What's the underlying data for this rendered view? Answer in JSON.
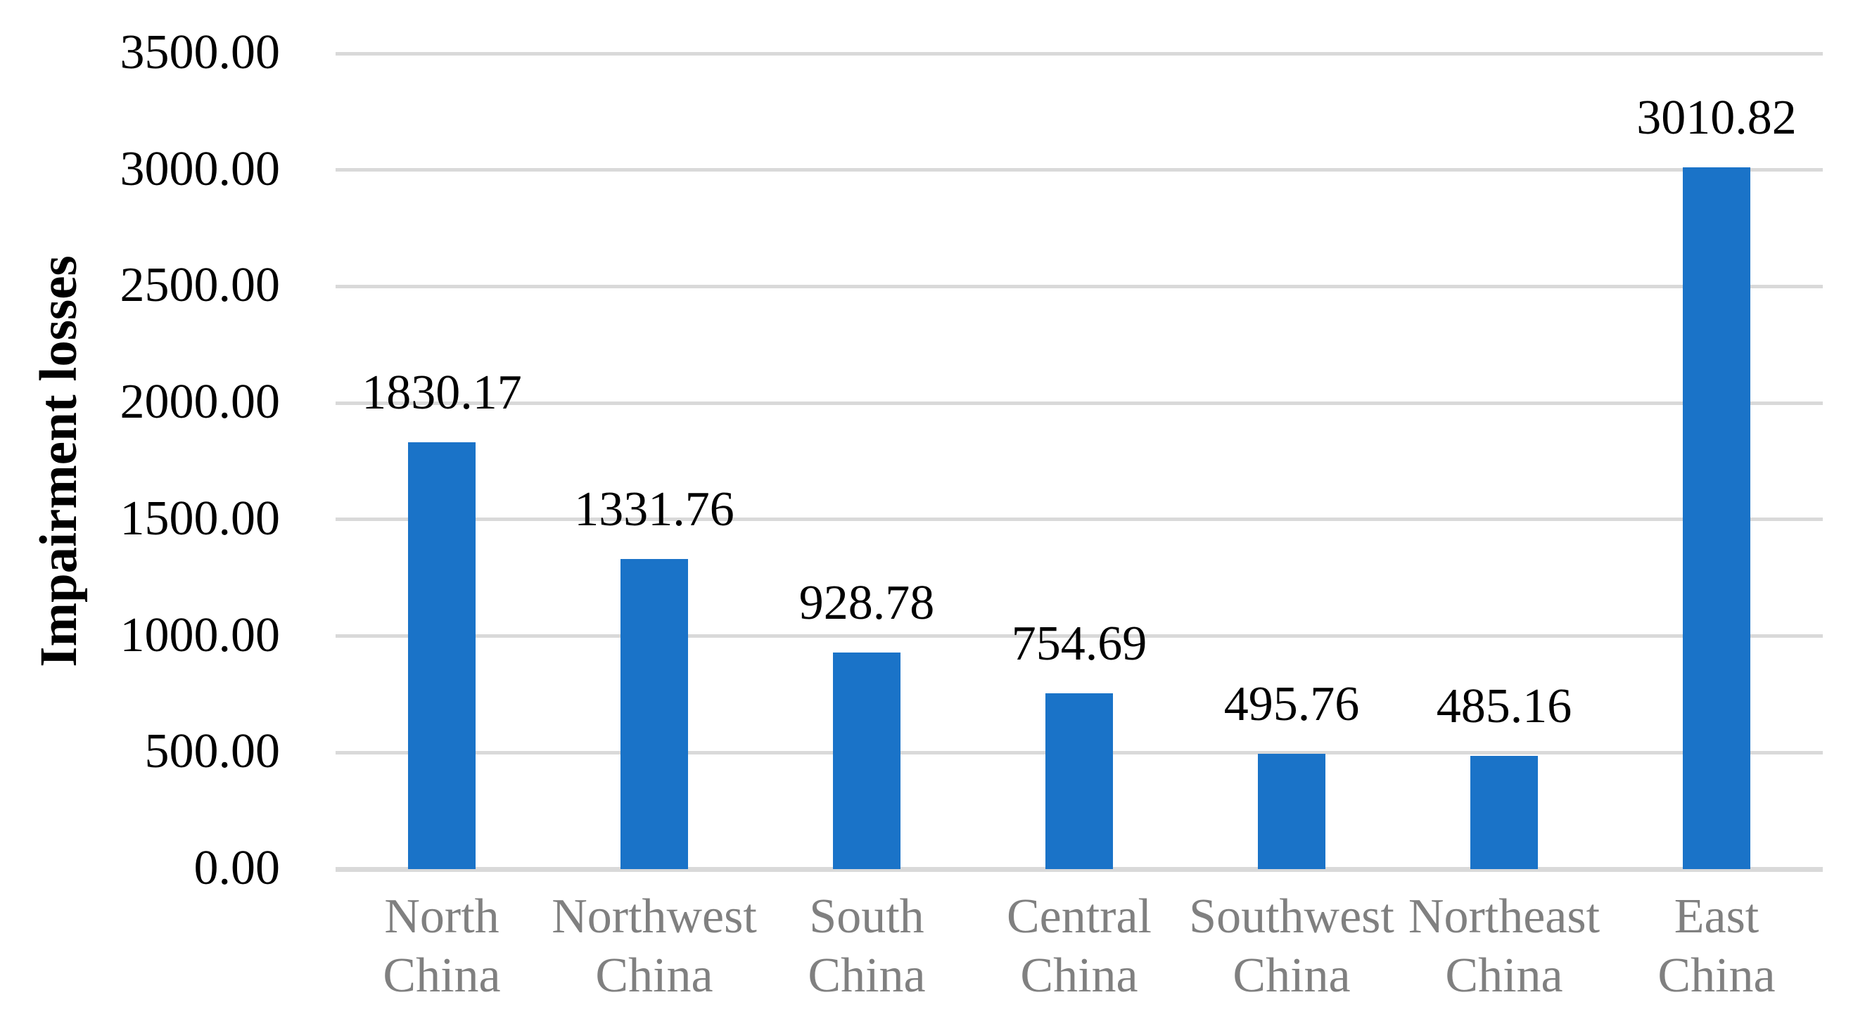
{
  "chart_data": {
    "type": "bar",
    "title": "",
    "xlabel": "",
    "ylabel": "Impairment losses",
    "categories": [
      "North China",
      "Northwest China",
      "South China",
      "Central China",
      "Southwest China",
      "Northeast China",
      "East China"
    ],
    "values": [
      1830.17,
      1331.76,
      928.78,
      754.69,
      495.76,
      485.16,
      3010.82
    ],
    "value_labels": [
      "1830.17",
      "1331.76",
      "928.78",
      "754.69",
      "495.76",
      "485.16",
      "3010.82"
    ],
    "ytick_values": [
      0,
      500,
      1000,
      1500,
      2000,
      2500,
      3000,
      3500
    ],
    "ytick_labels": [
      "0.00",
      "500.00",
      "1000.00",
      "1500.00",
      "2000.00",
      "2500.00",
      "3000.00",
      "3500.00"
    ],
    "ylim": [
      0,
      3500
    ],
    "grid": true,
    "legend": false,
    "colors": {
      "bar": "#1A73C8",
      "gridline": "#D9D9D9",
      "tick_text": "#000000",
      "data_label_text": "#000000",
      "category_text": "#808080",
      "background": "#FFFFFF"
    }
  }
}
